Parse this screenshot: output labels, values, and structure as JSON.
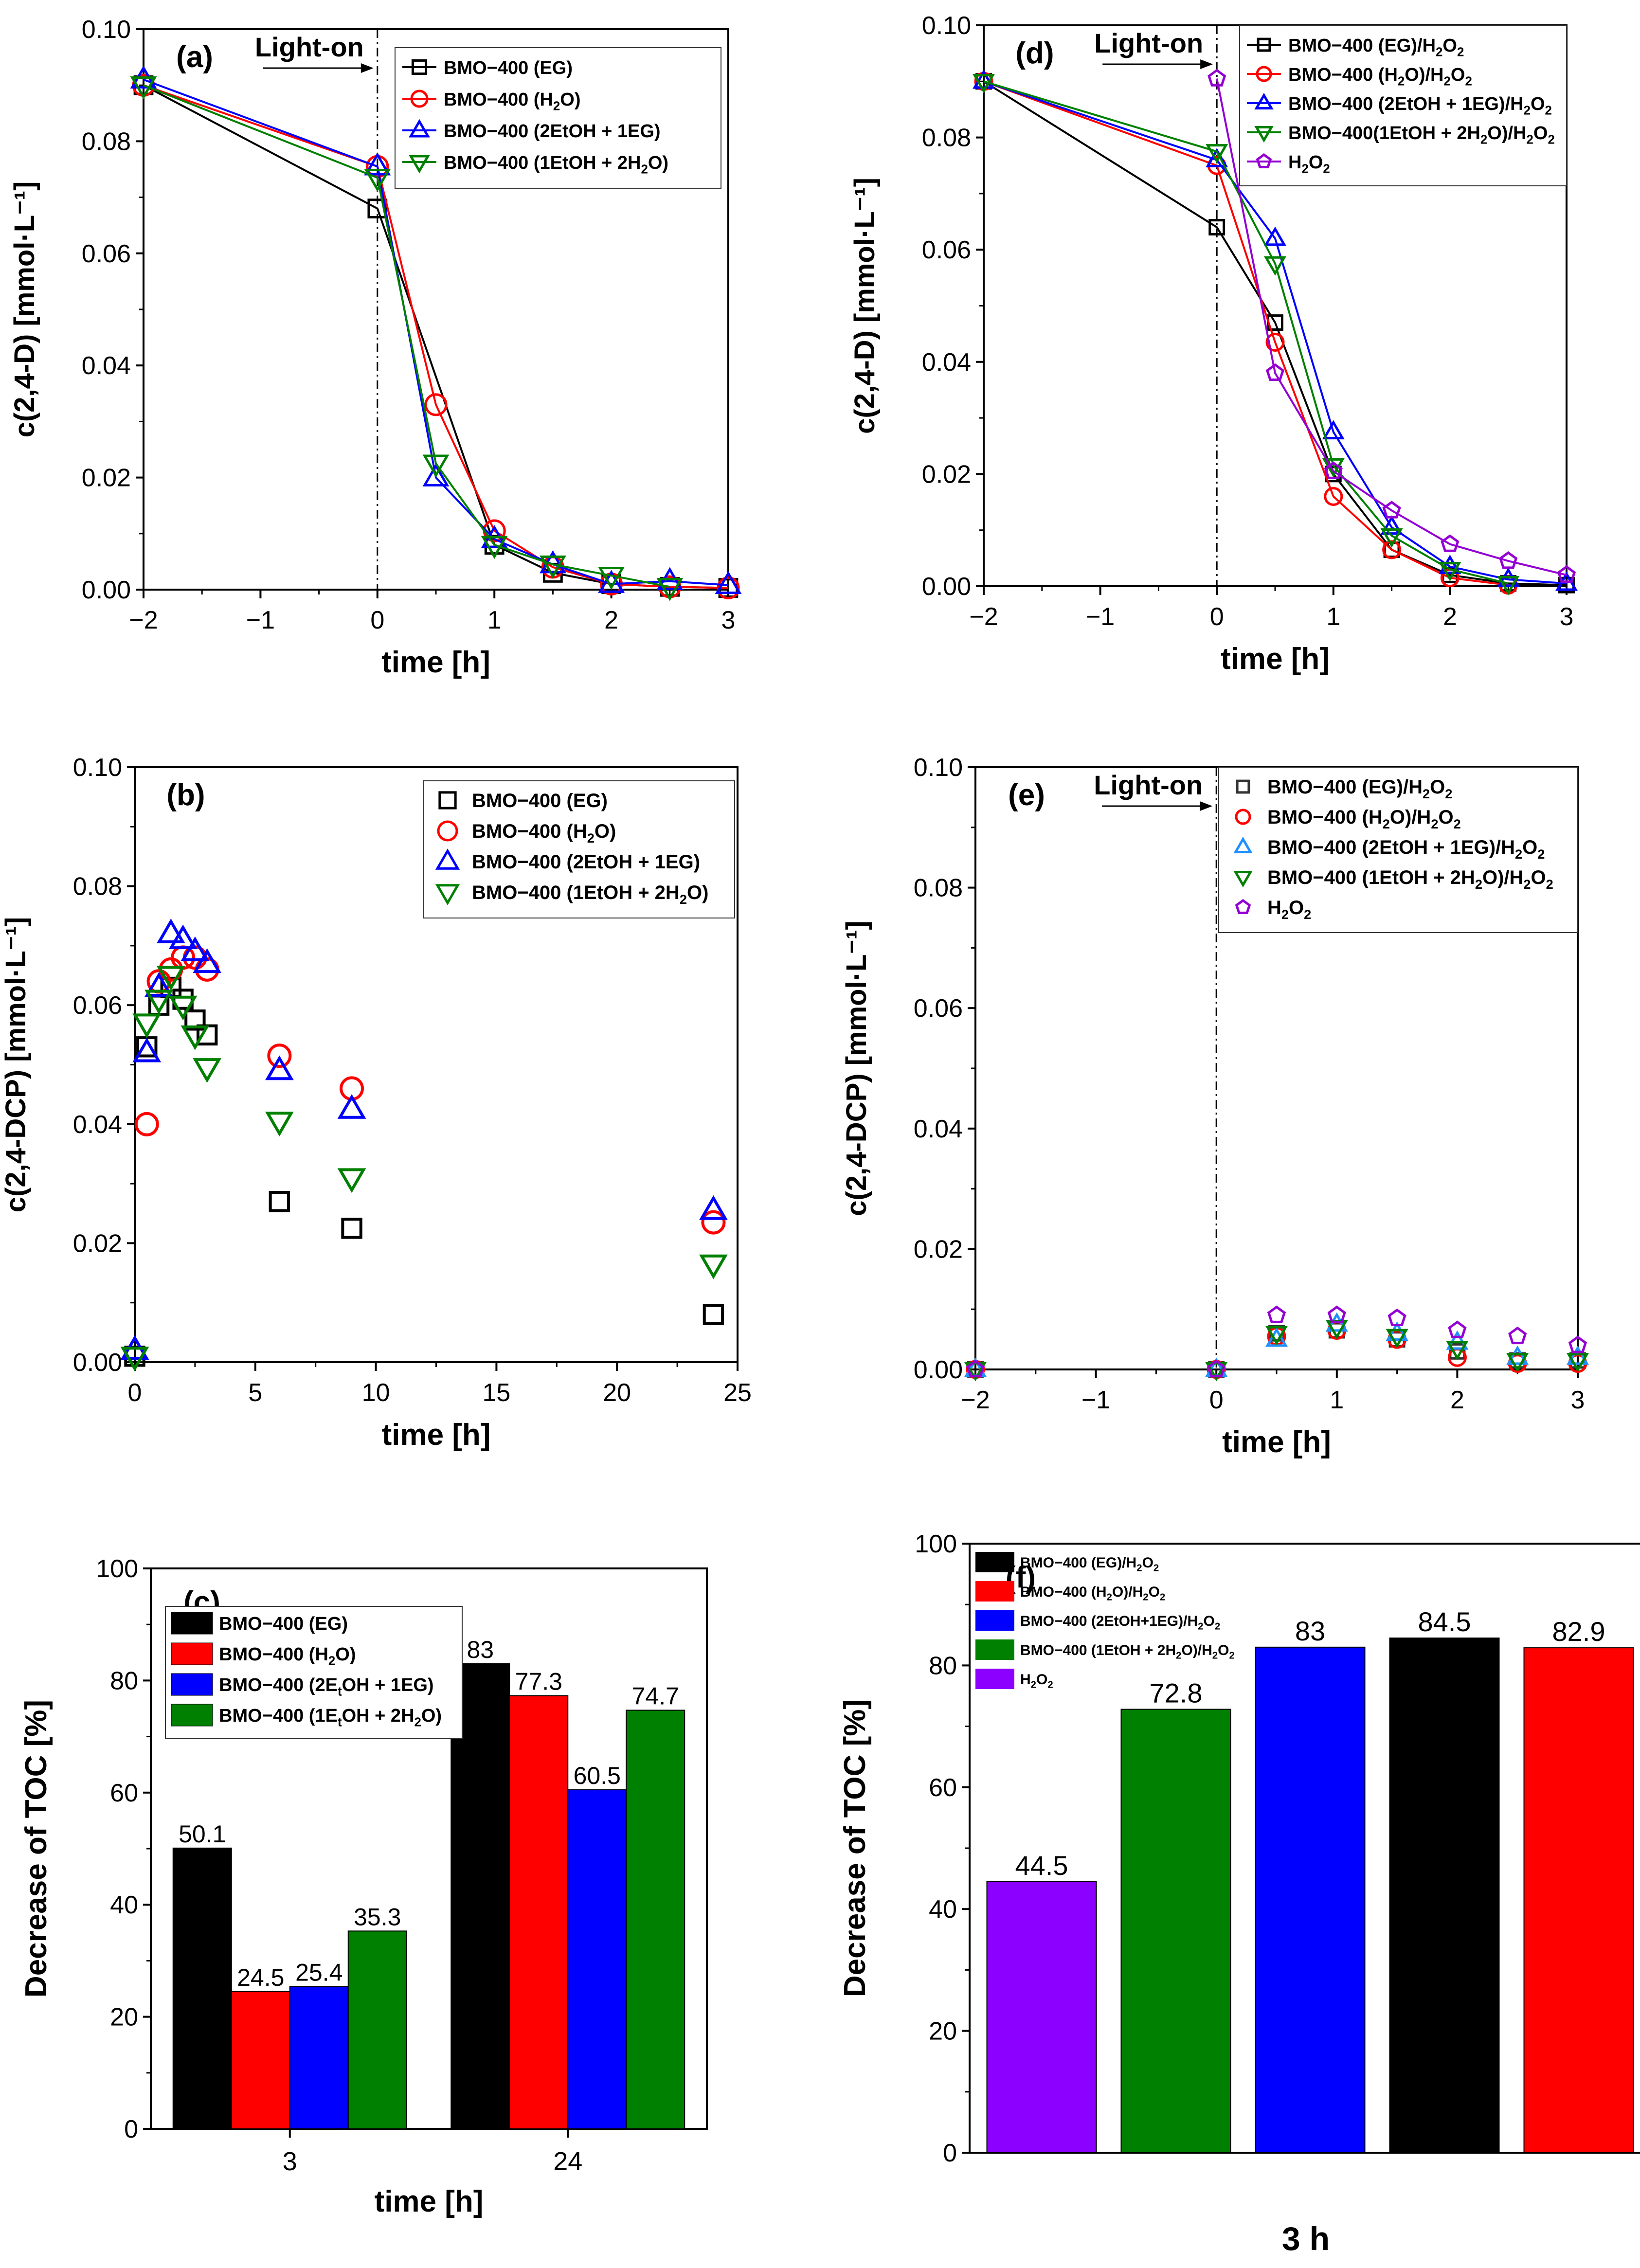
{
  "chart_data": [
    {
      "id": "a",
      "type": "line",
      "panel_label": "(a)",
      "title": "",
      "xlabel": "time [h]",
      "ylabel": "c(2,4-D) [mmol·L⁻¹]",
      "xlim": [
        -2,
        3
      ],
      "ylim": [
        0,
        0.1
      ],
      "xticks": [
        -2,
        -1,
        0,
        1,
        2,
        3
      ],
      "xtick_labels": [
        "−2",
        "−1",
        "0",
        "1",
        "2",
        "3"
      ],
      "yticks": [
        0,
        0.02,
        0.04,
        0.06,
        0.08,
        0.1
      ],
      "ytick_labels": [
        "0.00",
        "0.02",
        "0.04",
        "0.06",
        "0.08",
        "0.10"
      ],
      "light_on": {
        "label": "Light-on",
        "x": 0
      },
      "legend_position": "top-right",
      "series": [
        {
          "name": "BMO−400 (EG)",
          "label_main": "BMO−400 (EG)",
          "color": "#000000",
          "marker": "square",
          "lines": true,
          "x": [
            -2,
            0,
            1,
            1.5,
            2,
            2.5,
            3
          ],
          "y": [
            0.09,
            0.068,
            0.008,
            0.003,
            0.001,
            0.0005,
            0.0003
          ]
        },
        {
          "name": "BMO−400 (H2O)",
          "label_main": "BMO−400 (H",
          "label_sub": "2",
          "label_tail": "O)",
          "color": "#ff0000",
          "marker": "circle",
          "lines": true,
          "x": [
            -2,
            0,
            0.5,
            1,
            1.5,
            2,
            2.5,
            3
          ],
          "y": [
            0.09,
            0.0755,
            0.033,
            0.0105,
            0.004,
            0.001,
            0.0005,
            0.0003
          ]
        },
        {
          "name": "BMO−400 (2EtOH + 1EG)",
          "label_main": "BMO−400 (2EtOH + 1EG)",
          "color": "#0000ff",
          "marker": "triangle-up",
          "lines": true,
          "x": [
            -2,
            0,
            0.5,
            1,
            1.5,
            2,
            2.5,
            3
          ],
          "y": [
            0.091,
            0.0755,
            0.02,
            0.009,
            0.0045,
            0.001,
            0.0015,
            0.0008
          ]
        },
        {
          "name": "BMO−400 (1EtOH + 2H2O)",
          "label_main": "BMO−400 (1EtOH + 2H",
          "label_sub": "2",
          "label_tail": "O)",
          "color": "#008000",
          "marker": "triangle-down",
          "lines": true,
          "x": [
            -2,
            0,
            0.5,
            1,
            1.5,
            2,
            2.5
          ],
          "y": [
            0.09,
            0.0735,
            0.0225,
            0.008,
            0.0045,
            0.0025,
            0.0005
          ]
        }
      ]
    },
    {
      "id": "b",
      "type": "scatter",
      "panel_label": "(b)",
      "title": "",
      "xlabel": "time [h]",
      "ylabel": "c(2,4-DCP) [mmol·L⁻¹]",
      "xlim": [
        0,
        25
      ],
      "ylim": [
        0,
        0.1
      ],
      "xticks": [
        0,
        5,
        10,
        15,
        20,
        25
      ],
      "xtick_labels": [
        "0",
        "5",
        "10",
        "15",
        "20",
        "25"
      ],
      "yticks": [
        0,
        0.02,
        0.04,
        0.06,
        0.08,
        0.1
      ],
      "ytick_labels": [
        "0.00",
        "0.02",
        "0.04",
        "0.06",
        "0.08",
        "0.10"
      ],
      "legend_position": "top-right",
      "series": [
        {
          "name": "BMO−400 (EG)",
          "label_main": "BMO−400 (EG)",
          "color": "#000000",
          "marker": "square",
          "lines": false,
          "x": [
            0,
            0.5,
            1,
            1.5,
            2,
            2.5,
            3,
            6,
            9,
            24
          ],
          "y": [
            0.001,
            0.053,
            0.06,
            0.063,
            0.061,
            0.0575,
            0.055,
            0.027,
            0.0225,
            0.008
          ]
        },
        {
          "name": "BMO−400 (H2O)",
          "label_main": "BMO−400 (H",
          "label_sub": "2",
          "label_tail": "O)",
          "color": "#ff0000",
          "marker": "circle",
          "lines": false,
          "x": [
            0.5,
            1,
            1.5,
            2,
            2.5,
            3,
            6,
            9,
            24
          ],
          "y": [
            0.04,
            0.064,
            0.066,
            0.068,
            0.068,
            0.066,
            0.0515,
            0.046,
            0.0235
          ]
        },
        {
          "name": "BMO−400 (2EtOH + 1EG)",
          "label_main": "BMO−400 (2EtOH + 1EG)",
          "color": "#0000ff",
          "marker": "triangle-up",
          "lines": false,
          "x": [
            0,
            0.5,
            1,
            1.5,
            2,
            2.5,
            3,
            6,
            9,
            24
          ],
          "y": [
            0.002,
            0.052,
            0.063,
            0.072,
            0.071,
            0.069,
            0.067,
            0.049,
            0.0425,
            0.0255
          ]
        },
        {
          "name": "BMO−400 (1EtOH + 2H2O)",
          "label_main": "BMO−400 (1EtOH + 2H",
          "label_sub": "2",
          "label_tail": "O)",
          "color": "#008000",
          "marker": "triangle-down",
          "lines": false,
          "x": [
            0,
            0.5,
            1,
            1.5,
            2,
            2.5,
            3,
            6,
            9,
            24
          ],
          "y": [
            0.001,
            0.057,
            0.061,
            0.065,
            0.06,
            0.055,
            0.0495,
            0.0405,
            0.031,
            0.0165
          ]
        }
      ]
    },
    {
      "id": "c",
      "type": "bar",
      "panel_label": "(c)",
      "title": "",
      "xlabel": "time [h]",
      "ylabel": "Decrease of TOC [%]",
      "categories": [
        "3",
        "24"
      ],
      "ylim": [
        0,
        100
      ],
      "yticks": [
        0,
        20,
        40,
        60,
        80,
        100
      ],
      "ytick_labels": [
        "0",
        "20",
        "40",
        "60",
        "80",
        "100"
      ],
      "legend_position": "top-left",
      "series": [
        {
          "name": "BMO−400 (EG)",
          "label_main": "BMO−400 (EG)",
          "color": "#000000",
          "values": [
            50.1,
            83
          ],
          "value_labels": [
            "50.1",
            "83"
          ]
        },
        {
          "name": "BMO−400 (H2O)",
          "label_main": "BMO−400 (H",
          "label_sub": "2",
          "label_tail": "O)",
          "color": "#ff0000",
          "values": [
            24.5,
            77.3
          ],
          "value_labels": [
            "24.5",
            "77.3"
          ]
        },
        {
          "name": "BMO−400 (2EtOH + 1EG)",
          "label_main": "BMO−400 (2E",
          "label_sub": "t",
          "label_tail": "OH + 1EG)",
          "color": "#0000ff",
          "values": [
            25.4,
            60.5
          ],
          "value_labels": [
            "25.4",
            "60.5"
          ]
        },
        {
          "name": "BMO−400 (1EtOH + 2H2O)",
          "label_main": "BMO−400 (1E",
          "label_sub": "t",
          "label_tail": "OH + 2H",
          "label_sub2": "2",
          "label_tail2": "O)",
          "color": "#008000",
          "values": [
            35.3,
            74.7
          ],
          "value_labels": [
            "35.3",
            "74.7"
          ]
        }
      ]
    },
    {
      "id": "d",
      "type": "line",
      "panel_label": "(d)",
      "title": "",
      "xlabel": "time [h]",
      "ylabel": "c(2,4-D) [mmol·L⁻¹]",
      "xlim": [
        -2,
        3
      ],
      "ylim": [
        0,
        0.1
      ],
      "xticks": [
        -2,
        -1,
        0,
        1,
        2,
        3
      ],
      "xtick_labels": [
        "−2",
        "−1",
        "0",
        "1",
        "2",
        "3"
      ],
      "yticks": [
        0,
        0.02,
        0.04,
        0.06,
        0.08,
        0.1
      ],
      "ytick_labels": [
        "0.00",
        "0.02",
        "0.04",
        "0.06",
        "0.08",
        "0.10"
      ],
      "light_on": {
        "label": "Light-on",
        "x": 0
      },
      "legend_position": "top-right",
      "series": [
        {
          "name": "BMO−400 (EG)/H2O2",
          "label_main": "BMO−400 (EG)/H",
          "label_sub": "2",
          "label_tail": "O",
          "label_sub2": "2",
          "color": "#000000",
          "marker": "square",
          "lines": true,
          "x": [
            -2,
            0,
            0.5,
            1,
            1.5,
            2,
            2.5,
            3
          ],
          "y": [
            0.09,
            0.064,
            0.047,
            0.02,
            0.0065,
            0.002,
            0.0005,
            0.0002
          ]
        },
        {
          "name": "BMO−400 (H2O)/H2O2",
          "label_main": "BMO−400 (H",
          "label_sub": "2",
          "label_tail": "O)/H",
          "label_sub2": "2",
          "label_tail2": "O",
          "label_sub3": "2",
          "color": "#ff0000",
          "marker": "circle",
          "lines": true,
          "x": [
            -2,
            0,
            0.5,
            1,
            1.5,
            2,
            2.5
          ],
          "y": [
            0.09,
            0.075,
            0.0435,
            0.016,
            0.0065,
            0.0015,
            0.0002
          ]
        },
        {
          "name": "BMO−400 (2EtOH + 1EG)/H2O2",
          "label_main": "BMO−400 (2EtOH + 1EG)/H",
          "label_sub": "2",
          "label_tail": "O",
          "label_sub2": "2",
          "color": "#0000ff",
          "marker": "triangle-up",
          "lines": true,
          "x": [
            -2,
            0,
            0.5,
            1,
            1.5,
            2,
            2.5,
            3
          ],
          "y": [
            0.09,
            0.076,
            0.062,
            0.0275,
            0.0105,
            0.0035,
            0.0012,
            0.0005
          ]
        },
        {
          "name": "BMO−400(1EtOH + 2H2O)/H2O2",
          "label_main": "BMO−400(1EtOH + 2H",
          "label_sub": "2",
          "label_tail": "O)/H",
          "label_sub2": "2",
          "label_tail2": "O",
          "label_sub3": "2",
          "color": "#008000",
          "marker": "triangle-down",
          "lines": true,
          "x": [
            -2,
            0,
            0.5,
            1,
            1.5,
            2,
            2.5
          ],
          "y": [
            0.09,
            0.0775,
            0.0575,
            0.0215,
            0.009,
            0.003,
            0.0005
          ]
        },
        {
          "name": "H2O2",
          "label_main": "H",
          "label_sub": "2",
          "label_tail": "O",
          "label_sub2": "2",
          "color": "#9400d3",
          "marker": "pentagon",
          "lines": true,
          "x": [
            0,
            0.5,
            1,
            1.5,
            2,
            2.5,
            3
          ],
          "y": [
            0.0905,
            0.038,
            0.0205,
            0.0135,
            0.0075,
            0.0045,
            0.002
          ]
        }
      ]
    },
    {
      "id": "e",
      "type": "scatter",
      "panel_label": "(e)",
      "title": "",
      "xlabel": "time [h]",
      "ylabel": "c(2,4-DCP) [mmol·L⁻¹]",
      "xlim": [
        -2,
        3
      ],
      "ylim": [
        0,
        0.1
      ],
      "xticks": [
        -2,
        -1,
        0,
        1,
        2,
        3
      ],
      "xtick_labels": [
        "−2",
        "−1",
        "0",
        "1",
        "2",
        "3"
      ],
      "yticks": [
        0,
        0.02,
        0.04,
        0.06,
        0.08,
        0.1
      ],
      "ytick_labels": [
        "0.00",
        "0.02",
        "0.04",
        "0.06",
        "0.08",
        "0.10"
      ],
      "light_on": {
        "label": "Light-on",
        "x": 0
      },
      "legend_position": "top-right",
      "series": [
        {
          "name": "BMO−400 (EG)/H2O2",
          "label_main": "BMO−400 (EG)/H",
          "label_sub": "2",
          "label_tail": "O",
          "label_sub2": "2",
          "color": "#333333",
          "marker": "square",
          "lines": false,
          "x": [
            -2,
            0,
            0.5,
            1,
            1.5,
            2,
            2.5,
            3
          ],
          "y": [
            0,
            0,
            0.006,
            0.0065,
            0.005,
            0.003,
            0.0015,
            0.0015
          ]
        },
        {
          "name": "BMO−400 (H2O)/H2O2",
          "label_main": "BMO−400 (H",
          "label_sub": "2",
          "label_tail": "O)/H",
          "label_sub2": "2",
          "label_tail2": "O",
          "label_sub3": "2",
          "color": "#ff0000",
          "marker": "circle",
          "lines": false,
          "x": [
            -2,
            0,
            0.5,
            1,
            1.5,
            2,
            2.5,
            3
          ],
          "y": [
            0,
            0,
            0.0055,
            0.0065,
            0.005,
            0.002,
            0.001,
            0.001
          ]
        },
        {
          "name": "BMO−400 (2EtOH + 1EG)/H2O2",
          "label_main": "BMO−400 (2EtOH + 1EG)/H",
          "label_sub": "2",
          "label_tail": "O",
          "label_sub2": "2",
          "color": "#1e90ff",
          "marker": "triangle-up",
          "lines": false,
          "x": [
            -2,
            0,
            0.5,
            1,
            1.5,
            2,
            2.5,
            3
          ],
          "y": [
            0,
            0,
            0.005,
            0.0075,
            0.006,
            0.0045,
            0.002,
            0.002
          ]
        },
        {
          "name": "BMO−400 (1EtOH + 2H2O)/H2O2",
          "label_main": "BMO−400 (1EtOH + 2H",
          "label_sub": "2",
          "label_tail": "O)/H",
          "label_sub2": "2",
          "label_tail2": "O",
          "label_sub3": "2",
          "color": "#008000",
          "marker": "triangle-down",
          "lines": false,
          "x": [
            -2,
            0,
            0.5,
            1,
            1.5,
            2,
            2.5,
            3
          ],
          "y": [
            0,
            0,
            0.006,
            0.007,
            0.0055,
            0.0035,
            0.0015,
            0.0015
          ]
        },
        {
          "name": "H2O2",
          "label_main": "H",
          "label_sub": "2",
          "label_tail": "O",
          "label_sub2": "2",
          "color": "#9400d3",
          "marker": "pentagon",
          "lines": false,
          "x": [
            -2,
            0,
            0.5,
            1,
            1.5,
            2,
            2.5,
            3
          ],
          "y": [
            0,
            0,
            0.009,
            0.009,
            0.0085,
            0.0065,
            0.0055,
            0.004
          ]
        }
      ]
    },
    {
      "id": "f",
      "type": "bar",
      "panel_label": "(f)",
      "title": "",
      "xlabel": "3 h",
      "ylabel": "Decrease of TOC [%]",
      "ylim": [
        0,
        100
      ],
      "yticks": [
        0,
        20,
        40,
        60,
        80,
        100
      ],
      "ytick_labels": [
        "0",
        "20",
        "40",
        "60",
        "80",
        "100"
      ],
      "legend_position": "top-left",
      "bars": [
        {
          "name": "H2O2",
          "color": "#8b00ff",
          "value": 44.5,
          "value_label": "44.5"
        },
        {
          "name": "BMO−400 (1EtOH + 2H2O)/H2O2",
          "color": "#008000",
          "value": 72.8,
          "value_label": "72.8"
        },
        {
          "name": "BMO−400 (2EtOH+1EG)/H2O2",
          "color": "#0000ff",
          "value": 83,
          "value_label": "83"
        },
        {
          "name": "BMO−400 (EG)/H2O2",
          "color": "#000000",
          "value": 84.5,
          "value_label": "84.5"
        },
        {
          "name": "BMO−400 (H2O)/H2O2",
          "color": "#ff0000",
          "value": 82.9,
          "value_label": "82.9"
        }
      ],
      "legend": [
        {
          "label_main": "BMO−400 (EG)/H",
          "label_sub": "2",
          "label_tail": "O",
          "label_sub2": "2",
          "color": "#000000"
        },
        {
          "label_main": "BMO−400 (H",
          "label_sub": "2",
          "label_tail": "O)/H",
          "label_sub2": "2",
          "label_tail2": "O",
          "label_sub3": "2",
          "color": "#ff0000"
        },
        {
          "label_main": "BMO−400 (2EtOH+1EG)/H",
          "label_sub": "2",
          "label_tail": "O",
          "label_sub2": "2",
          "color": "#0000ff"
        },
        {
          "label_main": "BMO−400 (1EtOH + 2H",
          "label_sub": "2",
          "label_tail": "O)/H",
          "label_sub2": "2",
          "label_tail2": "O",
          "label_sub3": "2",
          "color": "#008000"
        },
        {
          "label_main": "H",
          "label_sub": "2",
          "label_tail": "O",
          "label_sub2": "2",
          "color": "#8b00ff"
        }
      ]
    }
  ]
}
